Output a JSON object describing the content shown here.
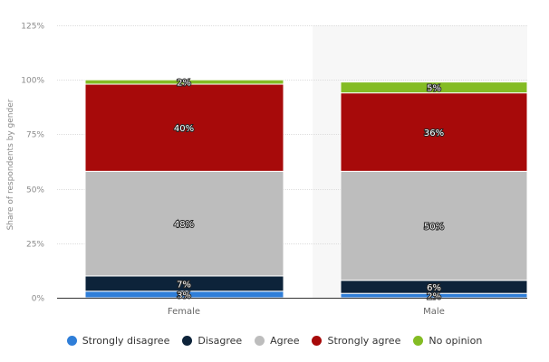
{
  "chart_data": {
    "type": "bar",
    "stacked": true,
    "title": "",
    "xlabel": "",
    "ylabel": "Share of respondents by gender",
    "ylim": [
      0,
      125
    ],
    "yticks": [
      "0%",
      "25%",
      "50%",
      "75%",
      "100%",
      "125%"
    ],
    "ytick_values": [
      0,
      25,
      50,
      75,
      100,
      125
    ],
    "grid": true,
    "legend_position": "bottom",
    "categories": [
      "Female",
      "Male"
    ],
    "highlighted_category": "Male",
    "series": [
      {
        "name": "Strongly disagree",
        "color": "#2f7ed8",
        "values": [
          3,
          2
        ],
        "labels": [
          "3%",
          "2%"
        ]
      },
      {
        "name": "Disagree",
        "color": "#0d233a",
        "values": [
          7,
          6
        ],
        "labels": [
          "7%",
          "6%"
        ]
      },
      {
        "name": "Agree",
        "color": "#bdbdbd",
        "values": [
          48,
          50
        ],
        "labels": [
          "48%",
          "50%"
        ]
      },
      {
        "name": "Strongly agree",
        "color": "#a70a0a",
        "values": [
          40,
          36
        ],
        "labels": [
          "40%",
          "36%"
        ]
      },
      {
        "name": "No opinion",
        "color": "#84bc24",
        "values": [
          2,
          5
        ],
        "labels": [
          "2%",
          "5%"
        ]
      }
    ]
  }
}
